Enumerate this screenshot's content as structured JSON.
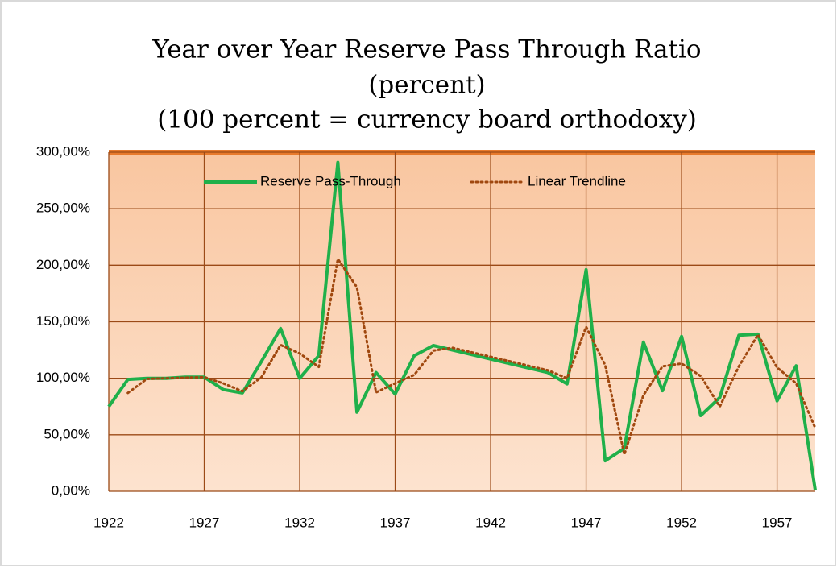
{
  "chart_data": {
    "type": "line",
    "title": [
      "Year over Year Reserve Pass Through Ratio",
      "(percent)",
      "(100 percent = currency board orthodoxy)"
    ],
    "x": [
      1922,
      1923,
      1924,
      1925,
      1926,
      1927,
      1928,
      1929,
      1930,
      1931,
      1932,
      1933,
      1934,
      1935,
      1936,
      1937,
      1938,
      1939,
      1940,
      1941,
      1942,
      1943,
      1944,
      1945,
      1946,
      1947,
      1948,
      1949,
      1950,
      1951,
      1952,
      1953,
      1954,
      1955,
      1956,
      1957,
      1958,
      1959
    ],
    "series": [
      {
        "name": "Reserve Pass-Through",
        "color": "#1fb04a",
        "style": "solid",
        "values": [
          75,
          99,
          100,
          100,
          101,
          101,
          90,
          87,
          115,
          144,
          100,
          120,
          291,
          70,
          105,
          86,
          120,
          129,
          125,
          121,
          117,
          113,
          109,
          105,
          95,
          196,
          27,
          38,
          132,
          89,
          137,
          67,
          83,
          138,
          139,
          80,
          111,
          1
        ]
      },
      {
        "name": "Linear Trendline",
        "color": "#a0480f",
        "style": "dotted",
        "values": [
          null,
          87,
          99.5,
          100,
          100.5,
          101,
          95.5,
          88.5,
          101,
          129.5,
          122,
          110,
          205.5,
          180.5,
          87.5,
          95.5,
          103,
          124.5,
          127,
          123,
          119,
          115,
          111,
          107,
          100,
          145.5,
          111.5,
          32.5,
          85,
          110.5,
          113,
          102,
          75,
          110.5,
          138.5,
          109.5,
          95.5,
          56
        ]
      }
    ],
    "xlim": [
      1922,
      1959
    ],
    "xticks": [
      1922,
      1927,
      1932,
      1937,
      1942,
      1947,
      1952,
      1957
    ],
    "ylim": [
      0,
      300
    ],
    "yticks": [
      {
        "value": 0,
        "label": "0,00%"
      },
      {
        "value": 50,
        "label": "50,00%"
      },
      {
        "value": 100,
        "label": "100,00%"
      },
      {
        "value": 150,
        "label": "150,00%"
      },
      {
        "value": 200,
        "label": "200,00%"
      },
      {
        "value": 250,
        "label": "250,00%"
      },
      {
        "value": 300,
        "label": "300,00%"
      }
    ],
    "grid": true,
    "legend": "top"
  }
}
